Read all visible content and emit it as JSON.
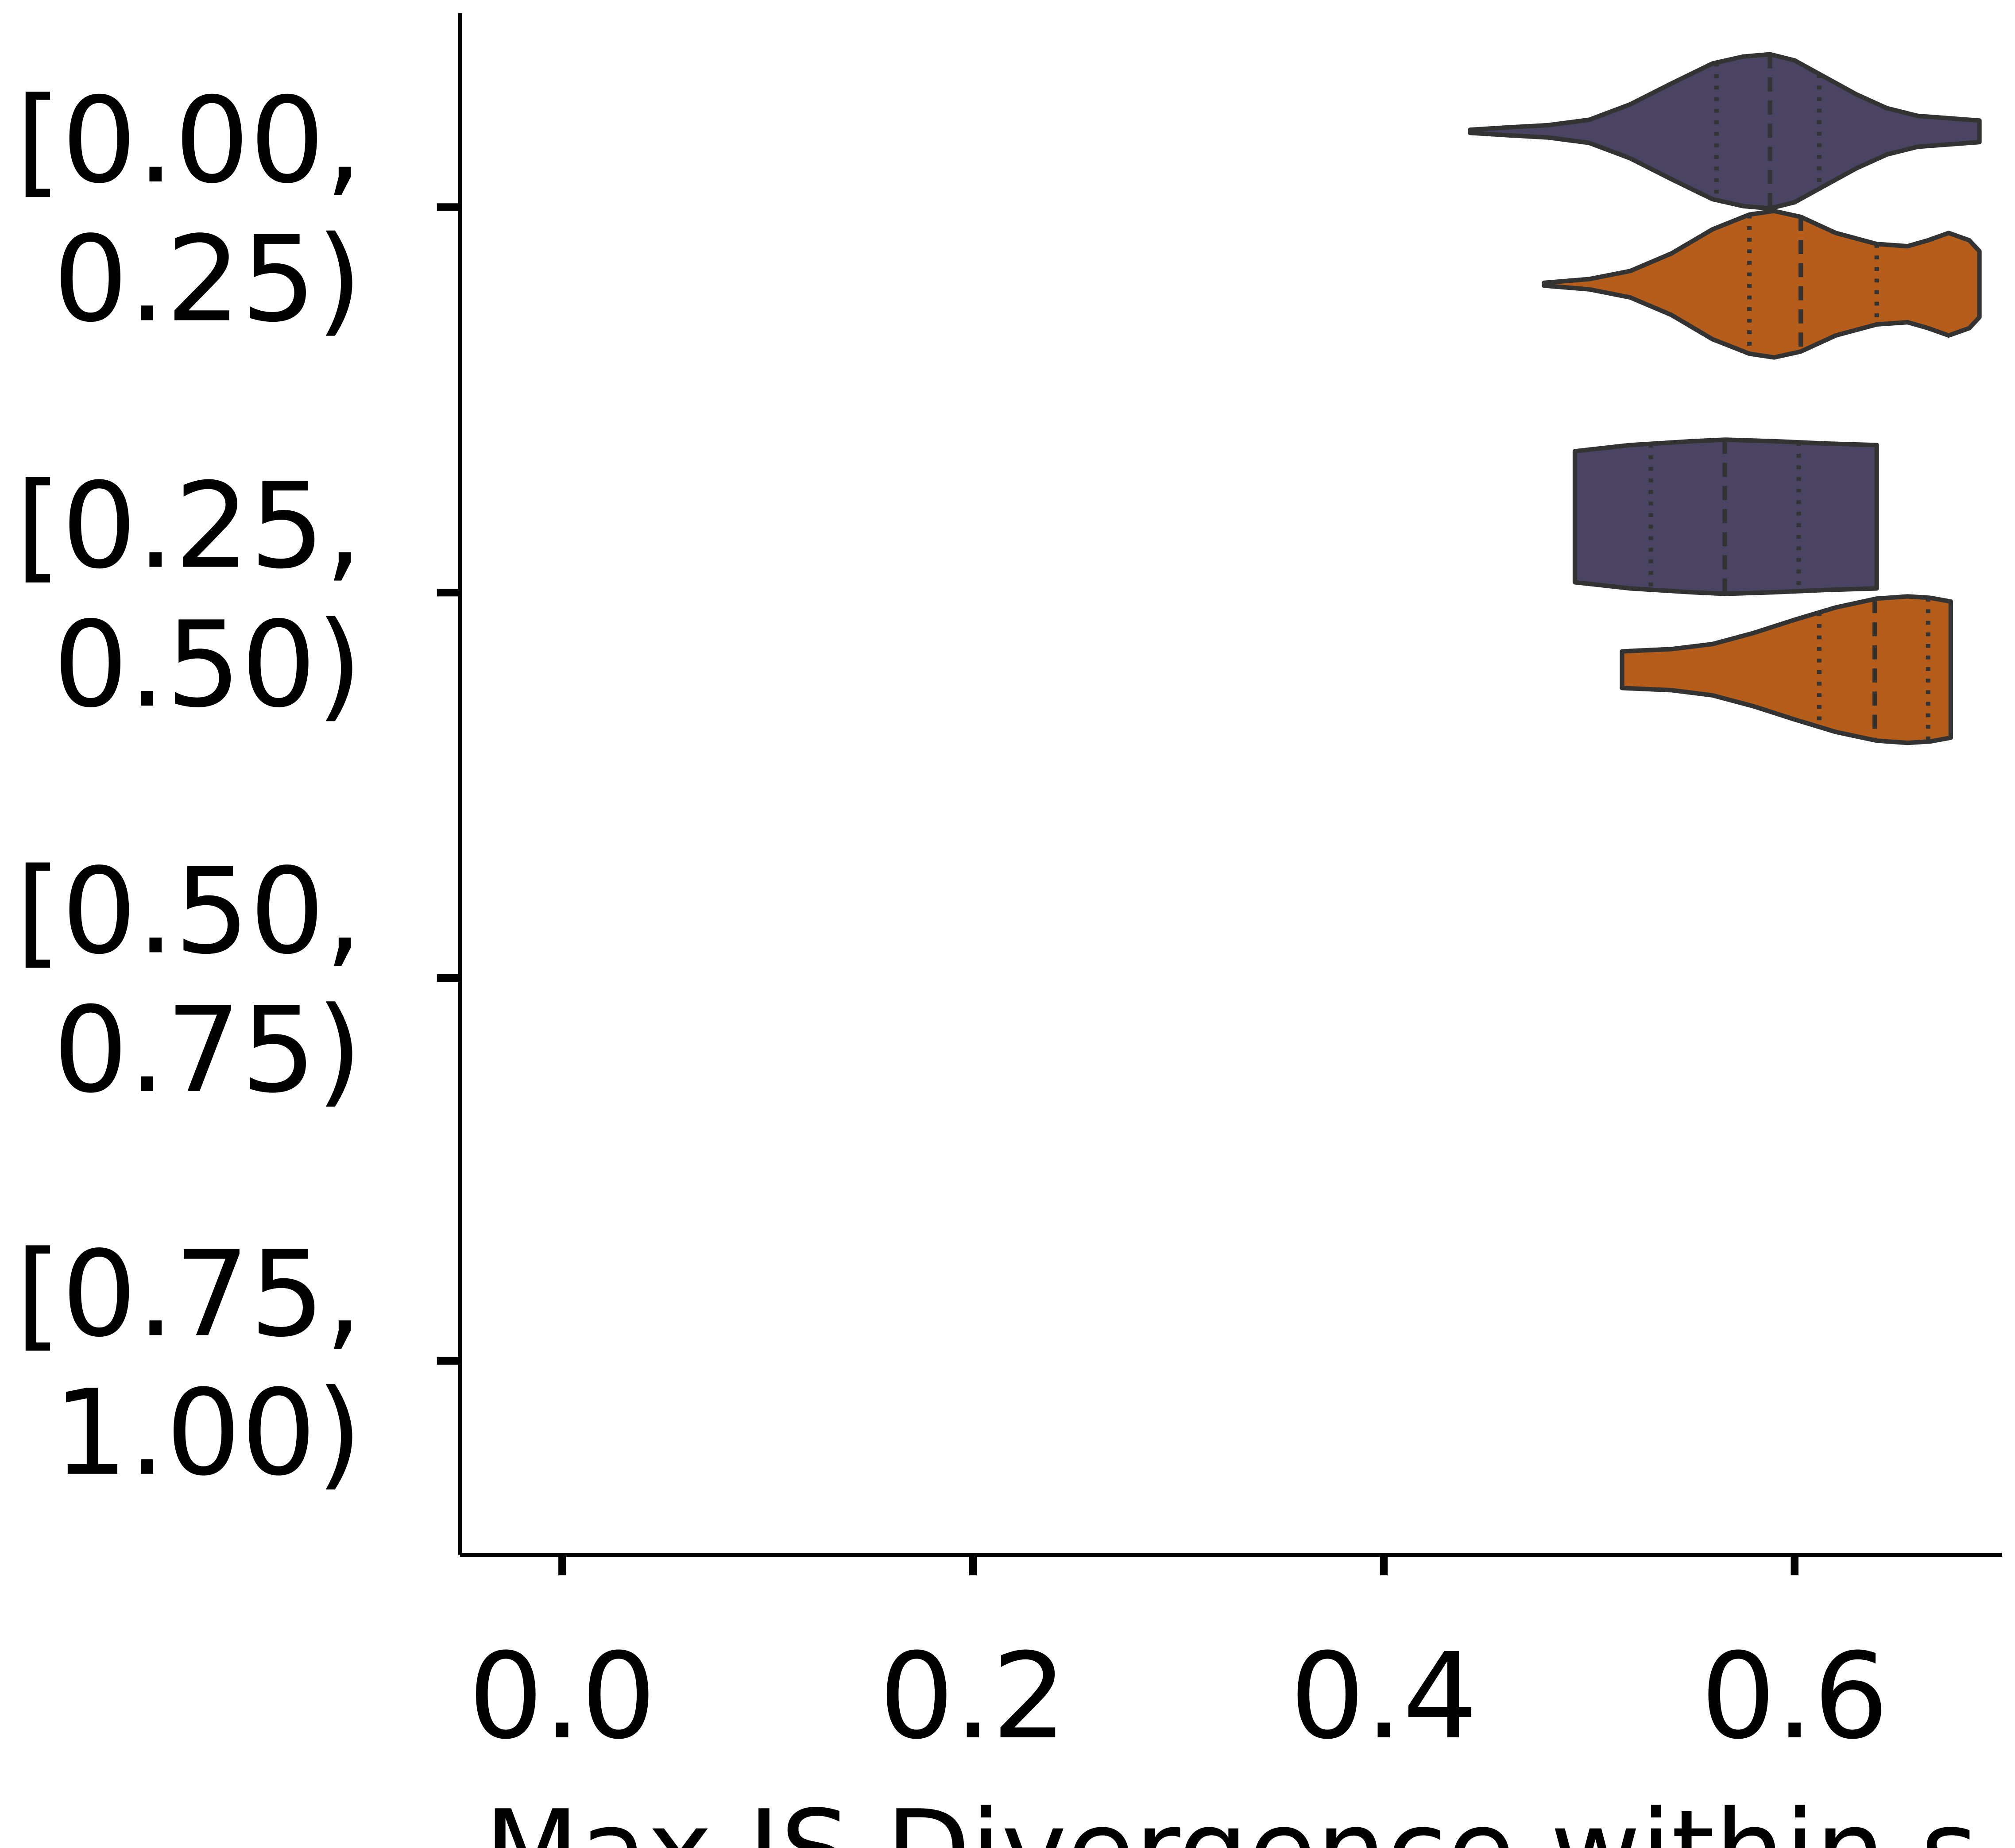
{
  "chart_data": {
    "type": "violin",
    "orientation": "horizontal",
    "xlabel": "Max JS Divergence within s",
    "ylabel": "",
    "xlim": [
      -0.05,
      0.7
    ],
    "x_ticks": [
      {
        "value": 0.0,
        "label": "0.0"
      },
      {
        "value": 0.2,
        "label": "0.2"
      },
      {
        "value": 0.4,
        "label": "0.4"
      },
      {
        "value": 0.6,
        "label": "0.6"
      }
    ],
    "categories": [
      {
        "label_line1": "[0.00,",
        "label_line2": "0.25)"
      },
      {
        "label_line1": "[0.25,",
        "label_line2": "0.50)"
      },
      {
        "label_line1": "[0.50,",
        "label_line2": "0.75)"
      },
      {
        "label_line1": "[0.75,",
        "label_line2": "1.00)"
      }
    ],
    "series": [
      {
        "color": "#4a4462",
        "groups": [
          {
            "category_index": 0,
            "min": 0.442,
            "max": 0.69,
            "q1": 0.562,
            "median": 0.588,
            "q3": 0.612,
            "density": [
              [
                0.442,
                0.02
              ],
              [
                0.46,
                0.05
              ],
              [
                0.48,
                0.08
              ],
              [
                0.5,
                0.15
              ],
              [
                0.52,
                0.35
              ],
              [
                0.54,
                0.62
              ],
              [
                0.56,
                0.88
              ],
              [
                0.575,
                0.97
              ],
              [
                0.588,
                1.0
              ],
              [
                0.6,
                0.92
              ],
              [
                0.615,
                0.7
              ],
              [
                0.63,
                0.48
              ],
              [
                0.645,
                0.3
              ],
              [
                0.66,
                0.2
              ],
              [
                0.675,
                0.17
              ],
              [
                0.69,
                0.14
              ]
            ]
          },
          {
            "category_index": 1,
            "min": 0.493,
            "max": 0.64,
            "q1": 0.53,
            "median": 0.566,
            "q3": 0.602,
            "density": [
              [
                0.493,
                0.85
              ],
              [
                0.52,
                0.93
              ],
              [
                0.55,
                0.98
              ],
              [
                0.566,
                1.0
              ],
              [
                0.59,
                0.98
              ],
              [
                0.615,
                0.95
              ],
              [
                0.64,
                0.93
              ]
            ]
          }
        ]
      },
      {
        "color": "#b55d1a",
        "groups": [
          {
            "category_index": 0,
            "min": 0.478,
            "max": 0.69,
            "q1": 0.578,
            "median": 0.603,
            "q3": 0.64,
            "density": [
              [
                0.478,
                0.02
              ],
              [
                0.5,
                0.07
              ],
              [
                0.52,
                0.18
              ],
              [
                0.54,
                0.42
              ],
              [
                0.56,
                0.75
              ],
              [
                0.578,
                0.95
              ],
              [
                0.59,
                1.0
              ],
              [
                0.603,
                0.92
              ],
              [
                0.62,
                0.7
              ],
              [
                0.64,
                0.55
              ],
              [
                0.655,
                0.52
              ],
              [
                0.665,
                0.6
              ],
              [
                0.675,
                0.7
              ],
              [
                0.685,
                0.6
              ],
              [
                0.69,
                0.45
              ]
            ]
          },
          {
            "category_index": 1,
            "min": 0.516,
            "max": 0.676,
            "q1": 0.612,
            "median": 0.639,
            "q3": 0.665,
            "density": [
              [
                0.516,
                0.25
              ],
              [
                0.54,
                0.28
              ],
              [
                0.56,
                0.35
              ],
              [
                0.58,
                0.5
              ],
              [
                0.6,
                0.68
              ],
              [
                0.62,
                0.85
              ],
              [
                0.64,
                0.97
              ],
              [
                0.655,
                1.0
              ],
              [
                0.666,
                0.98
              ],
              [
                0.676,
                0.93
              ]
            ]
          }
        ]
      }
    ]
  }
}
